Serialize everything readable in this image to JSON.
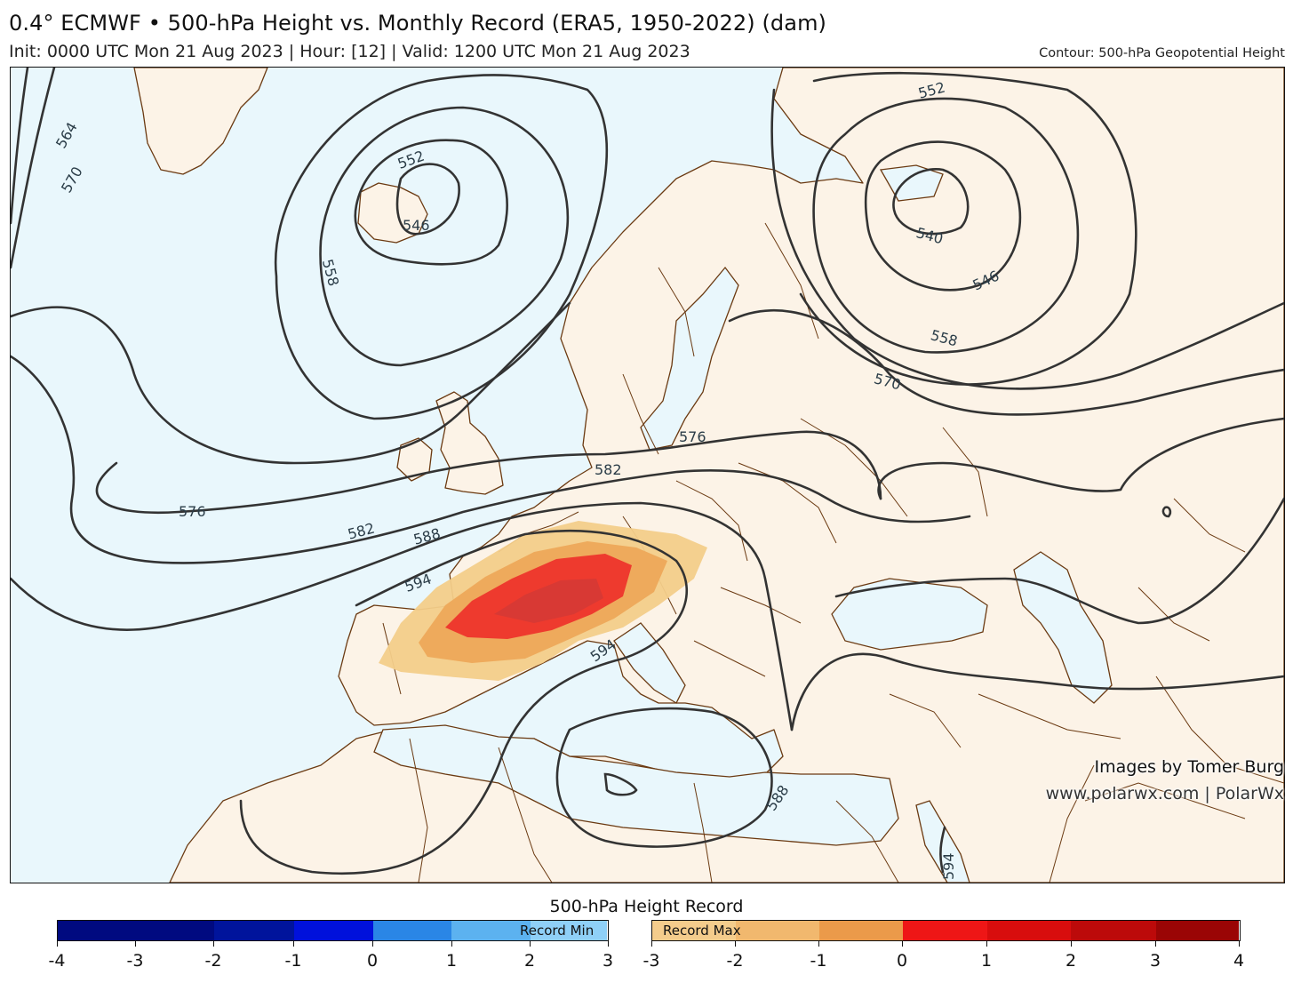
{
  "header": {
    "title": "0.4° ECMWF • 500-hPa Height vs. Monthly Record (ERA5, 1950-2022) (dam)",
    "subtitle": "Init: 0000 UTC Mon 21 Aug 2023 | Hour: [12] | Valid: 1200 UTC Mon 21 Aug 2023",
    "contour_note": "Contour: 500-hPa Geopotential Height"
  },
  "map": {
    "contour_labels": [
      "564",
      "570",
      "552",
      "546",
      "558",
      "552",
      "540",
      "546",
      "558",
      "570",
      "576",
      "582",
      "576",
      "582",
      "588",
      "594",
      "594",
      "588",
      "594"
    ],
    "colors": {
      "ocean": "#e9f7fc",
      "land": "#fcf3e7",
      "border": "#6b3a12",
      "contour": "#333333",
      "record_max_light": "#f3cd8a",
      "record_max_mid": "#eeaa5c",
      "record_max_red": "#ee3a2e",
      "record_max_core": "#d33a35"
    }
  },
  "credits": {
    "line1": "Images by Tomer Burg",
    "line2": "www.polarwx.com | PolarWx"
  },
  "colorbar": {
    "title": "500-hPa Height Record",
    "min_bar": {
      "label": "Record Min",
      "ticks": [
        "-4",
        "-3",
        "-2",
        "-1",
        "0",
        "1",
        "2",
        "3"
      ],
      "colors": [
        "#000a80",
        "#00149c",
        "#0011dc",
        "#2a86e6",
        "#5cb2f0",
        "#8fd0f7"
      ]
    },
    "max_bar": {
      "label": "Record Max",
      "ticks": [
        "-3",
        "-2",
        "-1",
        "0",
        "1",
        "2",
        "3",
        "4"
      ],
      "colors": [
        "#f4cc8c",
        "#f1b86e",
        "#eb9a4a",
        "#ee1616",
        "#d80d0d",
        "#bc0a0a",
        "#9a0505"
      ]
    }
  }
}
